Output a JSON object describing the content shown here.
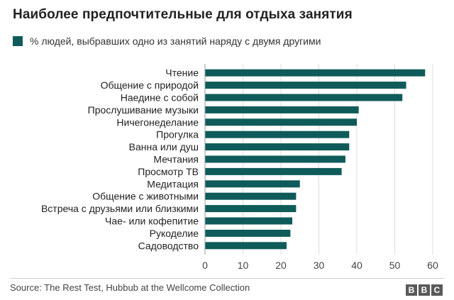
{
  "title": "Наиболее предпочтительные для отдыха занятия",
  "legend": {
    "label": "% людей, выбравших одно из занятий наряду с двумя другими"
  },
  "colors": {
    "bar": "#0f5b5a",
    "grid": "#dddddd"
  },
  "chart_data": {
    "type": "bar",
    "orientation": "horizontal",
    "categories": [
      "Чтение",
      "Общение с природой",
      "Наедине с собой",
      "Прослушивание музыки",
      "Ничегонеделание",
      "Прогулка",
      "Ванна или душ",
      "Мечтания",
      "Просмотр ТВ",
      "Медитация",
      "Общение с животными",
      "Встреча с друзьями или близкими",
      "Чае- или кофепитие",
      "Рукоделие",
      "Садоводство"
    ],
    "series": [
      {
        "name": "% людей, выбравших одно из занятий наряду с двумя другими",
        "values": [
          58,
          53,
          52,
          40.5,
          40,
          38,
          38,
          37,
          36,
          25,
          24,
          24,
          23,
          22.5,
          21.5
        ]
      }
    ],
    "xlim": [
      0,
      60
    ],
    "ticks": [
      "0",
      "10",
      "20",
      "30",
      "40",
      "50",
      "60"
    ],
    "grid": true
  },
  "footer": {
    "source": "Source: The Rest Test, Hubbub at the Wellcome Collection",
    "logo": [
      "B",
      "B",
      "C"
    ]
  }
}
